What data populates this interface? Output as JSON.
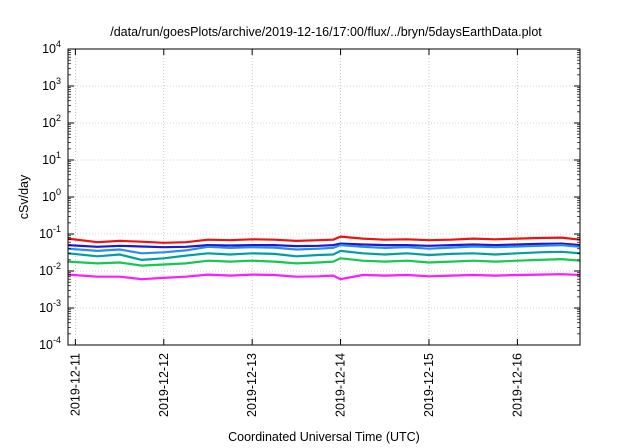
{
  "chart_data": {
    "type": "line",
    "title": "/data/run/goesPlots/archive/2019-12-16/17:00/flux/../bryn/5daysEarthData.plot",
    "xlabel": "Coordinated Universal Time (UTC)",
    "ylabel": "cSv/day",
    "yscale": "log",
    "ylim": [
      0.0001,
      10000
    ],
    "xlim": [
      "2019-12-10T22:00",
      "2019-12-16T17:00"
    ],
    "grid": true,
    "legend": "none",
    "x_ticks": [
      "2019-12-11",
      "2019-12-12",
      "2019-12-13",
      "2019-12-14",
      "2019-12-15",
      "2019-12-16"
    ],
    "y_ticks": [
      {
        "value": 0.0001,
        "base": "10",
        "exp": "-4"
      },
      {
        "value": 0.001,
        "base": "10",
        "exp": "-3"
      },
      {
        "value": 0.01,
        "base": "10",
        "exp": "-2"
      },
      {
        "value": 0.1,
        "base": "10",
        "exp": "-1"
      },
      {
        "value": 1,
        "base": "10",
        "exp": "0"
      },
      {
        "value": 10,
        "base": "10",
        "exp": "1"
      },
      {
        "value": 100,
        "base": "10",
        "exp": "2"
      },
      {
        "value": 1000,
        "base": "10",
        "exp": "3"
      },
      {
        "value": 10000,
        "base": "10",
        "exp": "4"
      }
    ],
    "series": [
      {
        "color": "#ee1111",
        "x": [
          "2019-12-10T22:00",
          "2019-12-11T06:00",
          "2019-12-11T12:00",
          "2019-12-11T18:00",
          "2019-12-12T00:00",
          "2019-12-12T06:00",
          "2019-12-12T12:00",
          "2019-12-12T18:00",
          "2019-12-13T00:00",
          "2019-12-13T06:00",
          "2019-12-13T12:00",
          "2019-12-13T18:00",
          "2019-12-13T22:00",
          "2019-12-14T00:00",
          "2019-12-14T06:00",
          "2019-12-14T12:00",
          "2019-12-14T18:00",
          "2019-12-15T00:00",
          "2019-12-15T06:00",
          "2019-12-15T12:00",
          "2019-12-15T18:00",
          "2019-12-16T00:00",
          "2019-12-16T06:00",
          "2019-12-16T12:00",
          "2019-12-16T17:00"
        ],
        "y": [
          0.075,
          0.06,
          0.065,
          0.062,
          0.058,
          0.06,
          0.07,
          0.068,
          0.072,
          0.07,
          0.065,
          0.068,
          0.07,
          0.085,
          0.075,
          0.07,
          0.072,
          0.068,
          0.07,
          0.075,
          0.072,
          0.075,
          0.078,
          0.08,
          0.07
        ]
      },
      {
        "color": "#1a1ad0",
        "x": [
          "2019-12-10T22:00",
          "2019-12-11T06:00",
          "2019-12-11T12:00",
          "2019-12-11T18:00",
          "2019-12-12T00:00",
          "2019-12-12T06:00",
          "2019-12-12T12:00",
          "2019-12-12T18:00",
          "2019-12-13T00:00",
          "2019-12-13T06:00",
          "2019-12-13T12:00",
          "2019-12-13T18:00",
          "2019-12-13T22:00",
          "2019-12-14T00:00",
          "2019-12-14T06:00",
          "2019-12-14T12:00",
          "2019-12-14T18:00",
          "2019-12-15T00:00",
          "2019-12-15T06:00",
          "2019-12-15T12:00",
          "2019-12-15T18:00",
          "2019-12-16T00:00",
          "2019-12-16T06:00",
          "2019-12-16T12:00",
          "2019-12-16T17:00"
        ],
        "y": [
          0.05,
          0.045,
          0.048,
          0.046,
          0.044,
          0.045,
          0.05,
          0.049,
          0.05,
          0.05,
          0.047,
          0.048,
          0.05,
          0.055,
          0.052,
          0.05,
          0.05,
          0.048,
          0.05,
          0.052,
          0.05,
          0.052,
          0.054,
          0.055,
          0.05
        ]
      },
      {
        "color": "#00a0a0",
        "x": [
          "2019-12-10T22:00",
          "2019-12-11T06:00",
          "2019-12-11T12:00",
          "2019-12-11T18:00",
          "2019-12-12T00:00",
          "2019-12-12T06:00",
          "2019-12-12T12:00",
          "2019-12-12T18:00",
          "2019-12-13T00:00",
          "2019-12-13T06:00",
          "2019-12-13T12:00",
          "2019-12-13T18:00",
          "2019-12-13T22:00",
          "2019-12-14T00:00",
          "2019-12-14T06:00",
          "2019-12-14T12:00",
          "2019-12-14T18:00",
          "2019-12-15T00:00",
          "2019-12-15T06:00",
          "2019-12-15T12:00",
          "2019-12-15T18:00",
          "2019-12-16T00:00",
          "2019-12-16T06:00",
          "2019-12-16T12:00",
          "2019-12-16T17:00"
        ],
        "y": [
          0.03,
          0.025,
          0.028,
          0.02,
          0.022,
          0.026,
          0.03,
          0.028,
          0.03,
          0.029,
          0.025,
          0.027,
          0.028,
          0.035,
          0.03,
          0.028,
          0.03,
          0.027,
          0.029,
          0.03,
          0.028,
          0.03,
          0.032,
          0.033,
          0.03
        ]
      },
      {
        "color": "#14c850",
        "x": [
          "2019-12-10T22:00",
          "2019-12-11T06:00",
          "2019-12-11T12:00",
          "2019-12-11T18:00",
          "2019-12-12T00:00",
          "2019-12-12T06:00",
          "2019-12-12T12:00",
          "2019-12-12T18:00",
          "2019-12-13T00:00",
          "2019-12-13T06:00",
          "2019-12-13T12:00",
          "2019-12-13T18:00",
          "2019-12-13T22:00",
          "2019-12-14T00:00",
          "2019-12-14T06:00",
          "2019-12-14T12:00",
          "2019-12-14T18:00",
          "2019-12-15T00:00",
          "2019-12-15T06:00",
          "2019-12-15T12:00",
          "2019-12-15T18:00",
          "2019-12-16T00:00",
          "2019-12-16T06:00",
          "2019-12-16T12:00",
          "2019-12-16T17:00"
        ],
        "y": [
          0.018,
          0.016,
          0.017,
          0.014,
          0.015,
          0.016,
          0.019,
          0.018,
          0.019,
          0.018,
          0.016,
          0.017,
          0.018,
          0.022,
          0.019,
          0.018,
          0.019,
          0.017,
          0.018,
          0.019,
          0.018,
          0.019,
          0.02,
          0.021,
          0.019
        ]
      },
      {
        "color": "#2a8cf0",
        "x": [
          "2019-12-10T22:00",
          "2019-12-11T06:00",
          "2019-12-11T12:00",
          "2019-12-11T18:00",
          "2019-12-12T00:00",
          "2019-12-12T06:00",
          "2019-12-12T12:00",
          "2019-12-12T18:00",
          "2019-12-13T00:00",
          "2019-12-13T06:00",
          "2019-12-13T12:00",
          "2019-12-13T18:00",
          "2019-12-13T22:00",
          "2019-12-14T00:00",
          "2019-12-14T06:00",
          "2019-12-14T12:00",
          "2019-12-14T18:00",
          "2019-12-15T00:00",
          "2019-12-15T06:00",
          "2019-12-15T12:00",
          "2019-12-15T18:00",
          "2019-12-16T00:00",
          "2019-12-16T06:00",
          "2019-12-16T12:00",
          "2019-12-16T17:00"
        ],
        "y": [
          0.04,
          0.035,
          0.038,
          0.03,
          0.032,
          0.036,
          0.045,
          0.042,
          0.044,
          0.043,
          0.038,
          0.04,
          0.042,
          0.05,
          0.045,
          0.042,
          0.044,
          0.04,
          0.043,
          0.046,
          0.044,
          0.046,
          0.048,
          0.05,
          0.045
        ]
      },
      {
        "color": "#ff1aff",
        "x": [
          "2019-12-10T22:00",
          "2019-12-11T06:00",
          "2019-12-11T12:00",
          "2019-12-11T18:00",
          "2019-12-12T00:00",
          "2019-12-12T06:00",
          "2019-12-12T12:00",
          "2019-12-12T18:00",
          "2019-12-13T00:00",
          "2019-12-13T06:00",
          "2019-12-13T12:00",
          "2019-12-13T18:00",
          "2019-12-13T22:00",
          "2019-12-14T00:00",
          "2019-12-14T06:00",
          "2019-12-14T12:00",
          "2019-12-14T18:00",
          "2019-12-15T00:00",
          "2019-12-15T06:00",
          "2019-12-15T12:00",
          "2019-12-15T18:00",
          "2019-12-16T00:00",
          "2019-12-16T06:00",
          "2019-12-16T12:00",
          "2019-12-16T17:00"
        ],
        "y": [
          0.008,
          0.007,
          0.007,
          0.006,
          0.0065,
          0.007,
          0.008,
          0.0075,
          0.008,
          0.0078,
          0.007,
          0.0072,
          0.0075,
          0.006,
          0.0078,
          0.0075,
          0.0078,
          0.0072,
          0.0075,
          0.0078,
          0.0075,
          0.0078,
          0.008,
          0.0082,
          0.0078
        ]
      }
    ]
  }
}
